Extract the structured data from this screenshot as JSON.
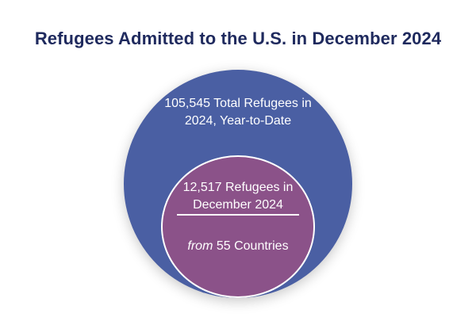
{
  "title": "Refugees Admitted to the U.S. in December 2024",
  "outer": {
    "line1": "105,545 Total Refugees in",
    "line2": "2024, Year-to-Date",
    "color": "#4a5fa3"
  },
  "inner": {
    "line1": "12,517 Refugees in",
    "line2": "December 2024",
    "countries_prefix": "from",
    "countries_text": " 55 Countries",
    "color": "#8b5289"
  },
  "colors": {
    "title": "#1f2a5e",
    "background": "#ffffff"
  }
}
